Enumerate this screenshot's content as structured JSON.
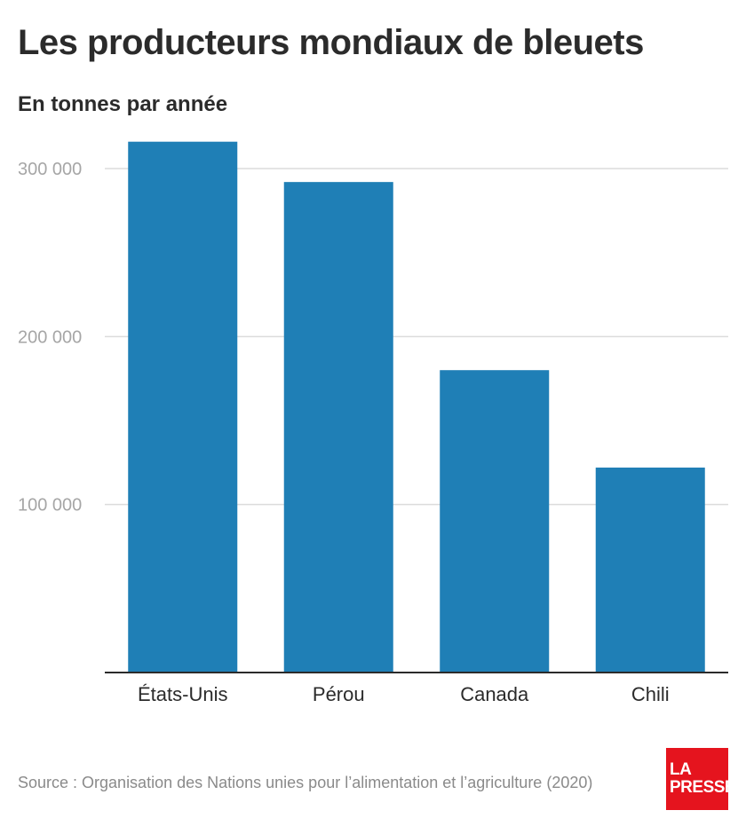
{
  "header": {
    "title": "Les producteurs mondiaux de bleuets",
    "subtitle": "En tonnes par année"
  },
  "footer": {
    "source": "Source : Organisation des Nations unies pour l’alimentation et l’agriculture (2020)"
  },
  "logo": {
    "line1": "LA",
    "line2": "PRESSE",
    "color": "#e5141e"
  },
  "colors": {
    "bar": "#1f7fb6",
    "grid": "#dcdcdc",
    "axis": "#2b2b2b",
    "tick": "#a6a6a6"
  },
  "chart_data": {
    "type": "bar",
    "categories": [
      "États-Unis",
      "Pérou",
      "Canada",
      "Chili"
    ],
    "values": [
      316000,
      292000,
      180000,
      122000
    ],
    "yticks": [
      100000,
      200000,
      300000
    ],
    "ytick_labels": [
      "100 000",
      "200 000",
      "300 000"
    ],
    "ylim": [
      0,
      330000
    ],
    "grid": true
  }
}
